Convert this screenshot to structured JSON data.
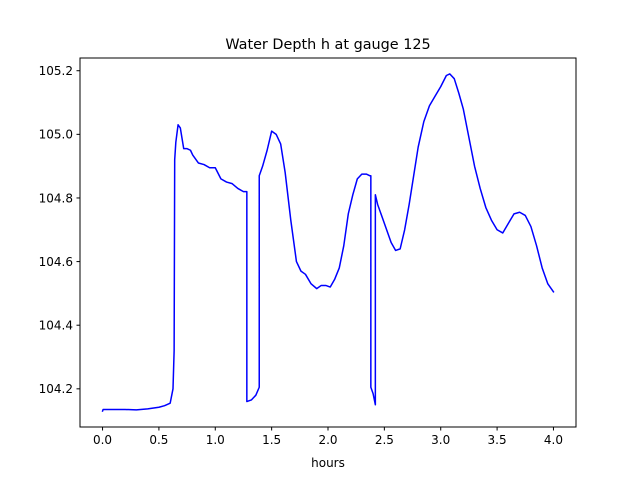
{
  "chart_data": {
    "type": "line",
    "title": "Water Depth h at gauge 125",
    "xlabel": "hours",
    "ylabel": "",
    "xlim": [
      -0.2,
      4.2
    ],
    "ylim": [
      104.08,
      105.24
    ],
    "xticks": [
      0.0,
      0.5,
      1.0,
      1.5,
      2.0,
      2.5,
      3.0,
      3.5,
      4.0
    ],
    "xtick_labels": [
      "0.0",
      "0.5",
      "1.0",
      "1.5",
      "2.0",
      "2.5",
      "3.0",
      "3.5",
      "4.0"
    ],
    "yticks": [
      104.2,
      104.4,
      104.6,
      104.8,
      105.0,
      105.2
    ],
    "ytick_labels": [
      "104.2",
      "104.4",
      "104.6",
      "104.8",
      "105.0",
      "105.2"
    ],
    "grid": false,
    "legend": "none",
    "series": [
      {
        "color": "#0000ff",
        "x": [
          0.0,
          0.005,
          0.1,
          0.2,
          0.3,
          0.4,
          0.5,
          0.55,
          0.6,
          0.625,
          0.635,
          0.64,
          0.65,
          0.67,
          0.69,
          0.72,
          0.75,
          0.78,
          0.8,
          0.85,
          0.9,
          0.95,
          1.0,
          1.05,
          1.1,
          1.15,
          1.2,
          1.25,
          1.27,
          1.28,
          1.28,
          1.32,
          1.36,
          1.39,
          1.39,
          1.42,
          1.46,
          1.5,
          1.54,
          1.58,
          1.62,
          1.67,
          1.72,
          1.76,
          1.8,
          1.85,
          1.9,
          1.94,
          1.98,
          2.02,
          2.06,
          2.1,
          2.14,
          2.18,
          2.22,
          2.26,
          2.3,
          2.34,
          2.37,
          2.38,
          2.38,
          2.4,
          2.42,
          2.42,
          2.44,
          2.48,
          2.52,
          2.56,
          2.6,
          2.64,
          2.68,
          2.72,
          2.76,
          2.8,
          2.85,
          2.9,
          2.95,
          3.0,
          3.05,
          3.08,
          3.12,
          3.16,
          3.2,
          3.25,
          3.3,
          3.35,
          3.4,
          3.45,
          3.5,
          3.55,
          3.6,
          3.65,
          3.7,
          3.75,
          3.8,
          3.85,
          3.9,
          3.95,
          4.0
        ],
        "y": [
          104.13,
          104.135,
          104.135,
          104.135,
          104.134,
          104.137,
          104.142,
          104.147,
          104.155,
          104.2,
          104.32,
          104.92,
          104.975,
          105.03,
          105.02,
          104.955,
          104.955,
          104.95,
          104.935,
          104.91,
          104.905,
          104.895,
          104.895,
          104.86,
          104.85,
          104.845,
          104.83,
          104.82,
          104.82,
          104.82,
          104.16,
          104.165,
          104.18,
          104.205,
          104.87,
          104.9,
          104.95,
          105.01,
          105.0,
          104.97,
          104.88,
          104.73,
          104.6,
          104.57,
          104.56,
          104.53,
          104.515,
          104.525,
          104.525,
          104.52,
          104.545,
          104.58,
          104.65,
          104.75,
          104.81,
          104.86,
          104.875,
          104.875,
          104.87,
          104.87,
          104.205,
          104.185,
          104.15,
          104.81,
          104.78,
          104.74,
          104.7,
          104.66,
          104.635,
          104.64,
          104.7,
          104.78,
          104.87,
          104.96,
          105.04,
          105.09,
          105.12,
          105.15,
          105.185,
          105.19,
          105.175,
          105.13,
          105.08,
          104.99,
          104.9,
          104.83,
          104.77,
          104.73,
          104.7,
          104.69,
          104.72,
          104.75,
          104.755,
          104.745,
          104.71,
          104.65,
          104.58,
          104.53,
          104.505
        ]
      }
    ]
  }
}
